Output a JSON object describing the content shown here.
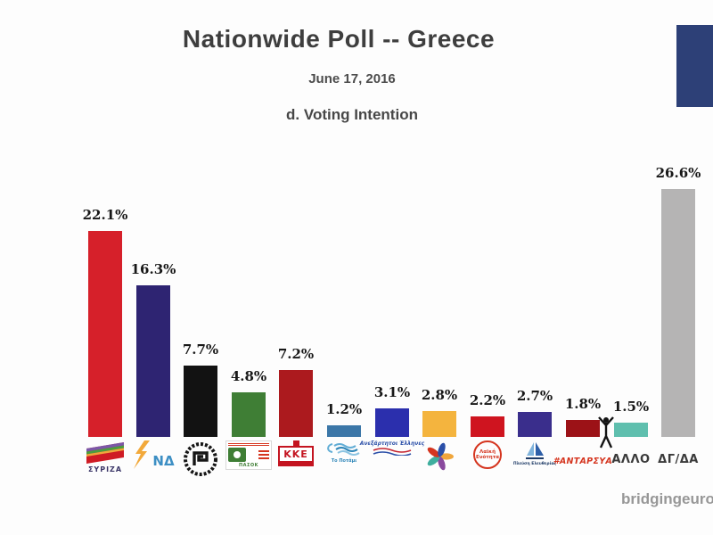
{
  "header": {
    "title": "Nationwide Poll -- Greece",
    "date": "June 17, 2016",
    "section_label": "d. Voting Intention"
  },
  "watermark": "bridgingeuro",
  "branding": {
    "corner_logo_color": "#2d4077"
  },
  "chart_data": {
    "type": "bar",
    "title": "d. Voting Intention",
    "subtitle": "June 17, 2016",
    "unit": "percent",
    "ylim": [
      0,
      28
    ],
    "grid": false,
    "legend": false,
    "x_axis_labels_are_party_logos": true,
    "categories": [
      "ΣΥΡΙΖΑ",
      "ΝΔ",
      "Χρυσή Αυγή",
      "ΠΑΣΟΚ",
      "ΚΚΕ",
      "Το Ποτάμι",
      "ΑΝΕΛ",
      "Ένωση Κεντρώων",
      "Λαϊκή Ενότητα",
      "Πλεύση Ελευθερίας",
      "ΑΝΤΑΡΣΥΑ",
      "ΑΛΛΟ",
      "ΔΓ/ΔΑ"
    ],
    "values": [
      22.1,
      16.3,
      7.7,
      4.8,
      7.2,
      1.2,
      3.1,
      2.8,
      2.2,
      2.7,
      1.8,
      1.5,
      26.6
    ],
    "value_labels": [
      "22.1%",
      "16.3%",
      "7.7%",
      "4.8%",
      "7.2%",
      "1.2%",
      "3.1%",
      "2.8%",
      "2.2%",
      "2.7%",
      "1.8%",
      "1.5%",
      "26.6%"
    ]
  },
  "bars": [
    {
      "id": "syriza",
      "party": "ΣΥΡΙΖΑ",
      "label": "22.1%",
      "value": 22.1,
      "color": "#d6202a",
      "logo_text": "ΣΥΡΙΖΑ"
    },
    {
      "id": "nea-dimokratia",
      "party": "ΝΔ",
      "label": "16.3%",
      "value": 16.3,
      "color": "#2e2472",
      "logo_text": "ΝΔ"
    },
    {
      "id": "xrysh-avgh",
      "party": "Χρυσή Αυγή",
      "label": "7.7%",
      "value": 7.7,
      "color": "#121212",
      "logo_text": ""
    },
    {
      "id": "pasok",
      "party": "ΠΑΣΟΚ",
      "label": "4.8%",
      "value": 4.8,
      "color": "#3f7e35",
      "logo_text": "ΠΑΣΟΚ"
    },
    {
      "id": "kke",
      "party": "ΚΚΕ",
      "label": "7.2%",
      "value": 7.2,
      "color": "#ac1a1e",
      "logo_text": "ΚΚΕ"
    },
    {
      "id": "to-potami",
      "party": "Το Ποτάμι",
      "label": "1.2%",
      "value": 1.2,
      "color": "#3c77a8",
      "logo_text": "Το Ποτάμι"
    },
    {
      "id": "anel",
      "party": "Ανεξάρτητοι Έλληνες",
      "label": "3.1%",
      "value": 3.1,
      "color": "#2b2fad",
      "logo_text": "Ανεξάρτητοι Έλληνες"
    },
    {
      "id": "enosi-kentroon",
      "party": "Ένωση Κεντρώων",
      "label": "2.8%",
      "value": 2.8,
      "color": "#f4b43e",
      "logo_text": ""
    },
    {
      "id": "laiki-enotita",
      "party": "Λαϊκή Ενότητα",
      "label": "2.2%",
      "value": 2.2,
      "color": "#cf141f",
      "logo_text": "Λαϊκή Ενότητα"
    },
    {
      "id": "plefsi-eleftherias",
      "party": "Πλεύση Ελευθερίας",
      "label": "2.7%",
      "value": 2.7,
      "color": "#3a2e8c",
      "logo_text": "Πλεύση Ελευθερίας"
    },
    {
      "id": "antarsya",
      "party": "ΑΝΤΑΡΣΥΑ",
      "label": "1.8%",
      "value": 1.8,
      "color": "#9c1217",
      "logo_text": "#ΑΝΤΑΡΣΥΑ"
    },
    {
      "id": "allo",
      "party": "ΑΛΛΟ",
      "label": "1.5%",
      "value": 1.5,
      "color": "#5fbfae",
      "logo_text": "ΑΛΛΟ"
    },
    {
      "id": "dg-da",
      "party": "ΔΓ/ΔΑ",
      "label": "26.6%",
      "value": 26.6,
      "color": "#b5b4b4",
      "logo_text": "ΔΓ/ΔΑ"
    }
  ]
}
